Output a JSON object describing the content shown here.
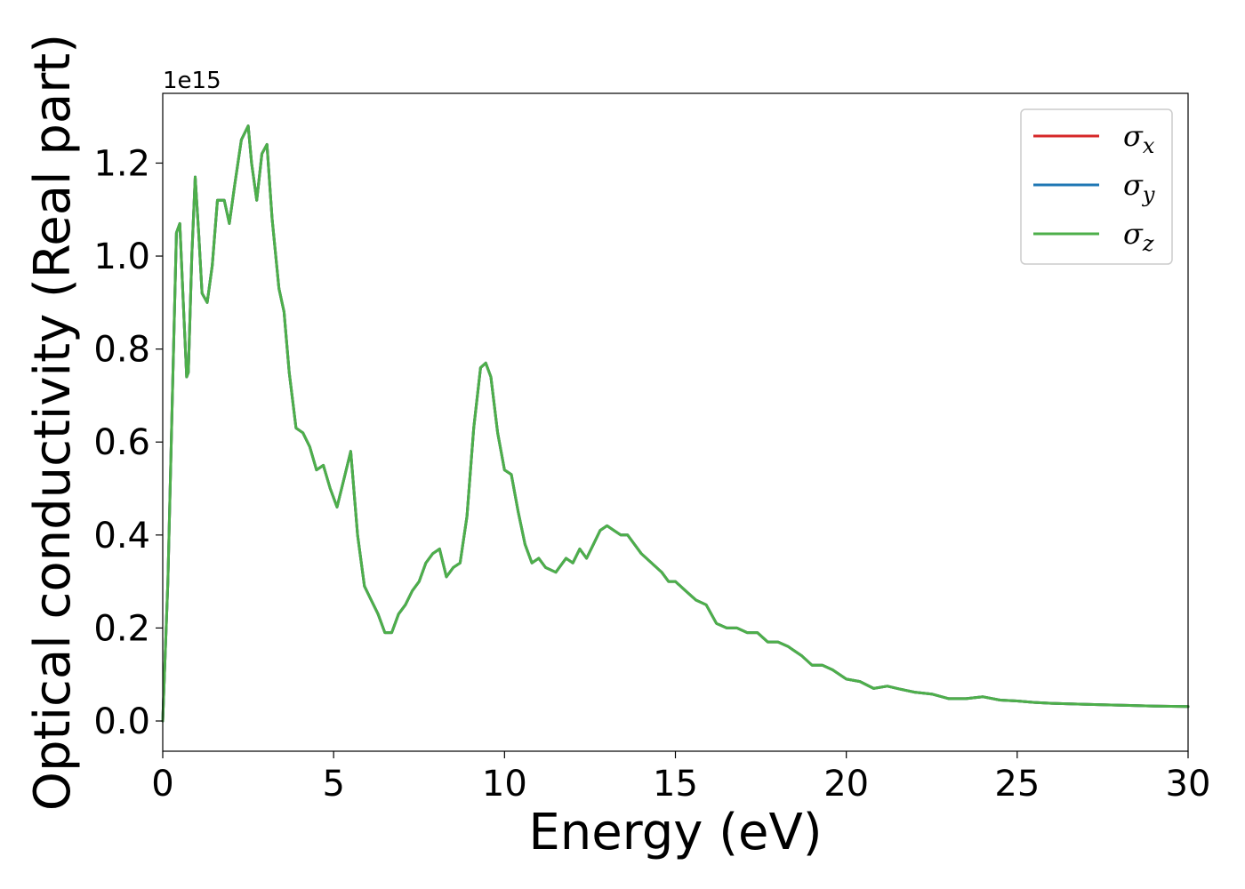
{
  "chart_data": {
    "type": "line",
    "xlabel": "Energy (eV)",
    "ylabel": "Optical conductivity (Real part)",
    "y_offset_label": "1e15",
    "xlim": [
      0,
      30
    ],
    "ylim": [
      -0.065,
      1.35
    ],
    "x_ticks": [
      0,
      5,
      10,
      15,
      20,
      25,
      30
    ],
    "x_tick_labels": [
      "0",
      "5",
      "10",
      "15",
      "20",
      "25",
      "30"
    ],
    "y_ticks": [
      0.0,
      0.2,
      0.4,
      0.6,
      0.8,
      1.0,
      1.2
    ],
    "y_tick_labels": [
      "0.0",
      "0.2",
      "0.4",
      "0.6",
      "0.8",
      "1.0",
      "1.2"
    ],
    "grid": false,
    "legend_position": "top-right",
    "series": [
      {
        "name": "σ",
        "subscript": "x",
        "color": "#d62728"
      },
      {
        "name": "σ",
        "subscript": "y",
        "color": "#1f77b4"
      },
      {
        "name": "σ",
        "subscript": "z",
        "color": "#4daf4a"
      }
    ],
    "x": [
      0,
      0.15,
      0.3,
      0.4,
      0.5,
      0.6,
      0.7,
      0.75,
      0.85,
      0.95,
      1.05,
      1.15,
      1.3,
      1.45,
      1.6,
      1.8,
      1.95,
      2.1,
      2.3,
      2.5,
      2.6,
      2.75,
      2.9,
      3.05,
      3.2,
      3.4,
      3.55,
      3.7,
      3.9,
      4.1,
      4.3,
      4.5,
      4.7,
      4.9,
      5.1,
      5.3,
      5.5,
      5.7,
      5.9,
      6.1,
      6.3,
      6.5,
      6.7,
      6.9,
      7.1,
      7.3,
      7.5,
      7.7,
      7.9,
      8.1,
      8.3,
      8.5,
      8.7,
      8.9,
      9.1,
      9.3,
      9.45,
      9.6,
      9.8,
      10.0,
      10.2,
      10.4,
      10.6,
      10.8,
      11.0,
      11.2,
      11.5,
      11.8,
      12.0,
      12.2,
      12.4,
      12.6,
      12.8,
      13.0,
      13.2,
      13.4,
      13.6,
      13.8,
      14.0,
      14.3,
      14.6,
      14.8,
      15.0,
      15.3,
      15.6,
      15.9,
      16.2,
      16.5,
      16.8,
      17.1,
      17.4,
      17.7,
      18.0,
      18.3,
      18.7,
      19.0,
      19.3,
      19.6,
      20.0,
      20.4,
      20.8,
      21.2,
      21.6,
      22.0,
      22.5,
      23.0,
      23.5,
      24.0,
      24.5,
      25.0,
      25.5,
      26.0,
      27.0,
      28.0,
      29.0,
      30.0
    ],
    "y": [
      0.0,
      0.3,
      0.75,
      1.05,
      1.07,
      0.9,
      0.74,
      0.75,
      1.0,
      1.17,
      1.05,
      0.92,
      0.9,
      0.98,
      1.12,
      1.12,
      1.07,
      1.15,
      1.25,
      1.28,
      1.2,
      1.12,
      1.22,
      1.24,
      1.08,
      0.93,
      0.88,
      0.75,
      0.63,
      0.62,
      0.59,
      0.54,
      0.55,
      0.5,
      0.46,
      0.52,
      0.58,
      0.4,
      0.29,
      0.26,
      0.23,
      0.19,
      0.19,
      0.23,
      0.25,
      0.28,
      0.3,
      0.34,
      0.36,
      0.37,
      0.31,
      0.33,
      0.34,
      0.44,
      0.63,
      0.76,
      0.77,
      0.74,
      0.62,
      0.54,
      0.53,
      0.45,
      0.38,
      0.34,
      0.35,
      0.33,
      0.32,
      0.35,
      0.34,
      0.37,
      0.35,
      0.38,
      0.41,
      0.42,
      0.41,
      0.4,
      0.4,
      0.38,
      0.36,
      0.34,
      0.32,
      0.3,
      0.3,
      0.28,
      0.26,
      0.25,
      0.21,
      0.2,
      0.2,
      0.19,
      0.19,
      0.17,
      0.17,
      0.16,
      0.14,
      0.12,
      0.12,
      0.11,
      0.09,
      0.085,
      0.07,
      0.075,
      0.068,
      0.062,
      0.058,
      0.048,
      0.048,
      0.052,
      0.045,
      0.043,
      0.04,
      0.038,
      0.036,
      0.034,
      0.032,
      0.031
    ]
  }
}
